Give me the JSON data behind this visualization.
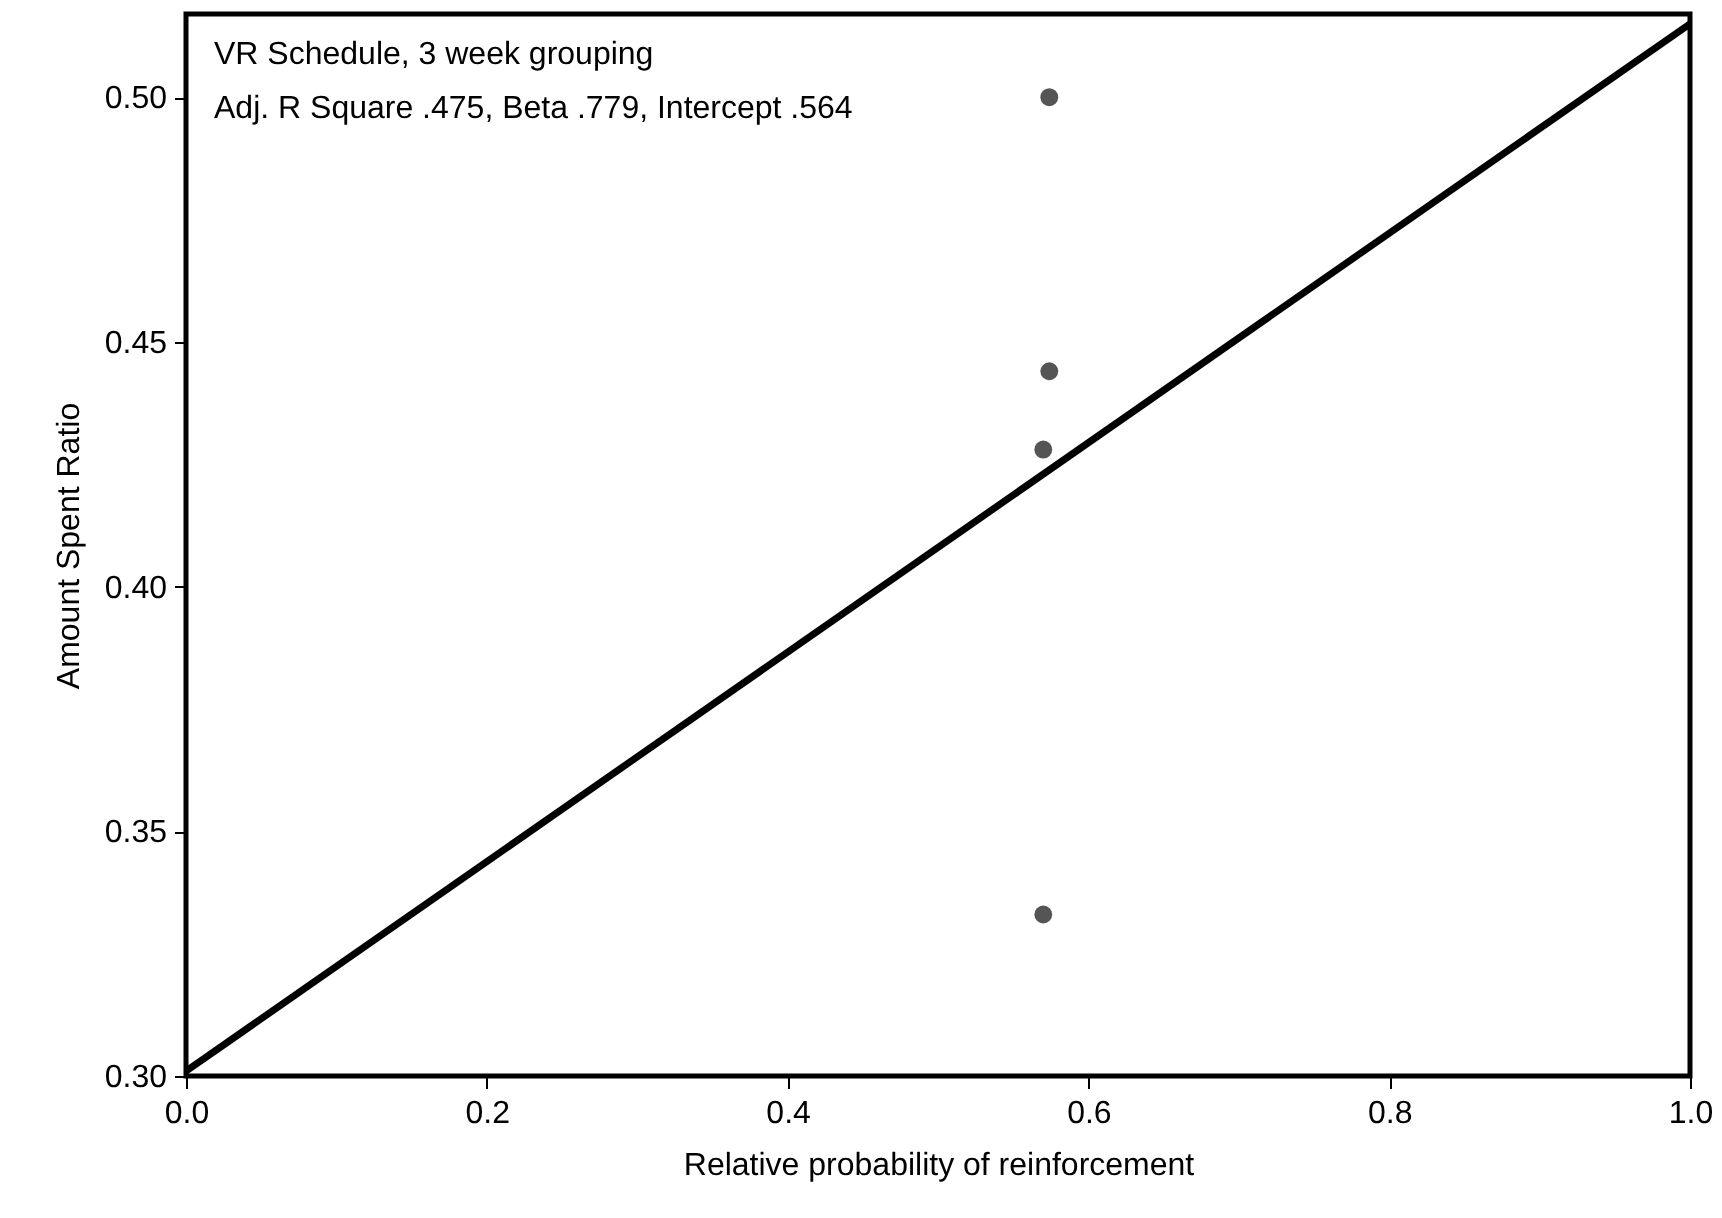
{
  "chart_data": {
    "type": "scatter",
    "xlabel": "Relative probability of reinforcement",
    "ylabel": "Amount Spent Ratio",
    "annotations": [
      "VR Schedule, 3 week grouping",
      "Adj. R Square .475, Beta .779, Intercept .564"
    ],
    "series": [
      {
        "type": "scatter",
        "marker": "circle",
        "color": "#555555",
        "x": [
          0.574,
          0.574,
          0.57,
          0.57
        ],
        "values": [
          0.5,
          0.444,
          0.428,
          0.333
        ]
      },
      {
        "type": "line",
        "color": "#000000",
        "x": [
          0,
          1
        ],
        "values": [
          0.301,
          0.515
        ]
      }
    ],
    "xlim": [
      0,
      1
    ],
    "ylim": [
      0.3,
      0.517
    ],
    "xticks": [
      "0.0",
      0.2,
      0.4,
      0.6,
      0.8,
      "1.0"
    ],
    "yticks": [
      {
        "value": 0.3,
        "label": "0.30"
      },
      {
        "value": 0.35,
        "label": "0.35"
      },
      {
        "value": 0.4,
        "label": "0.40"
      },
      {
        "value": 0.45,
        "label": "0.45"
      },
      {
        "value": 0.5,
        "label": "0.50"
      }
    ],
    "grid": false,
    "legend": false
  }
}
